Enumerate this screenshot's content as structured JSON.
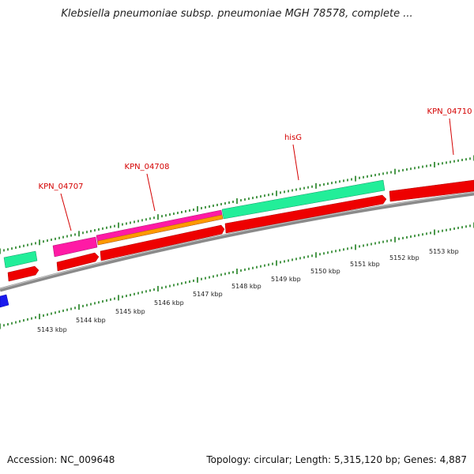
{
  "title": "Klebsiella pneumoniae subsp. pneumoniae MGH 78578, complete ...",
  "footer": {
    "accession": "Accession: NC_009648",
    "topology": "Topology: circular; Length: 5,315,120 bp; Genes: 4,887"
  },
  "colors": {
    "backbone": "#8a8a8a",
    "ticks": "#117711",
    "label": "#d40000",
    "gene_red": "#ee0000",
    "gene_green": "#22ee99",
    "gene_magenta": "#ff1aa5",
    "gene_orange": "#ff9900",
    "gene_blue": "#1a1aee"
  },
  "scale": {
    "unit": "kbp",
    "labels": [
      "5143 kbp",
      "5144 kbp",
      "5145 kbp",
      "5146 kbp",
      "5147 kbp",
      "5148 kbp",
      "5149 kbp",
      "5150 kbp",
      "5151 kbp",
      "5152 kbp",
      "5153 kbp"
    ]
  },
  "gene_labels": [
    {
      "name": "KPN_04707"
    },
    {
      "name": "KPN_04708"
    },
    {
      "name": "hisG"
    },
    {
      "name": "KPN_04710"
    }
  ]
}
